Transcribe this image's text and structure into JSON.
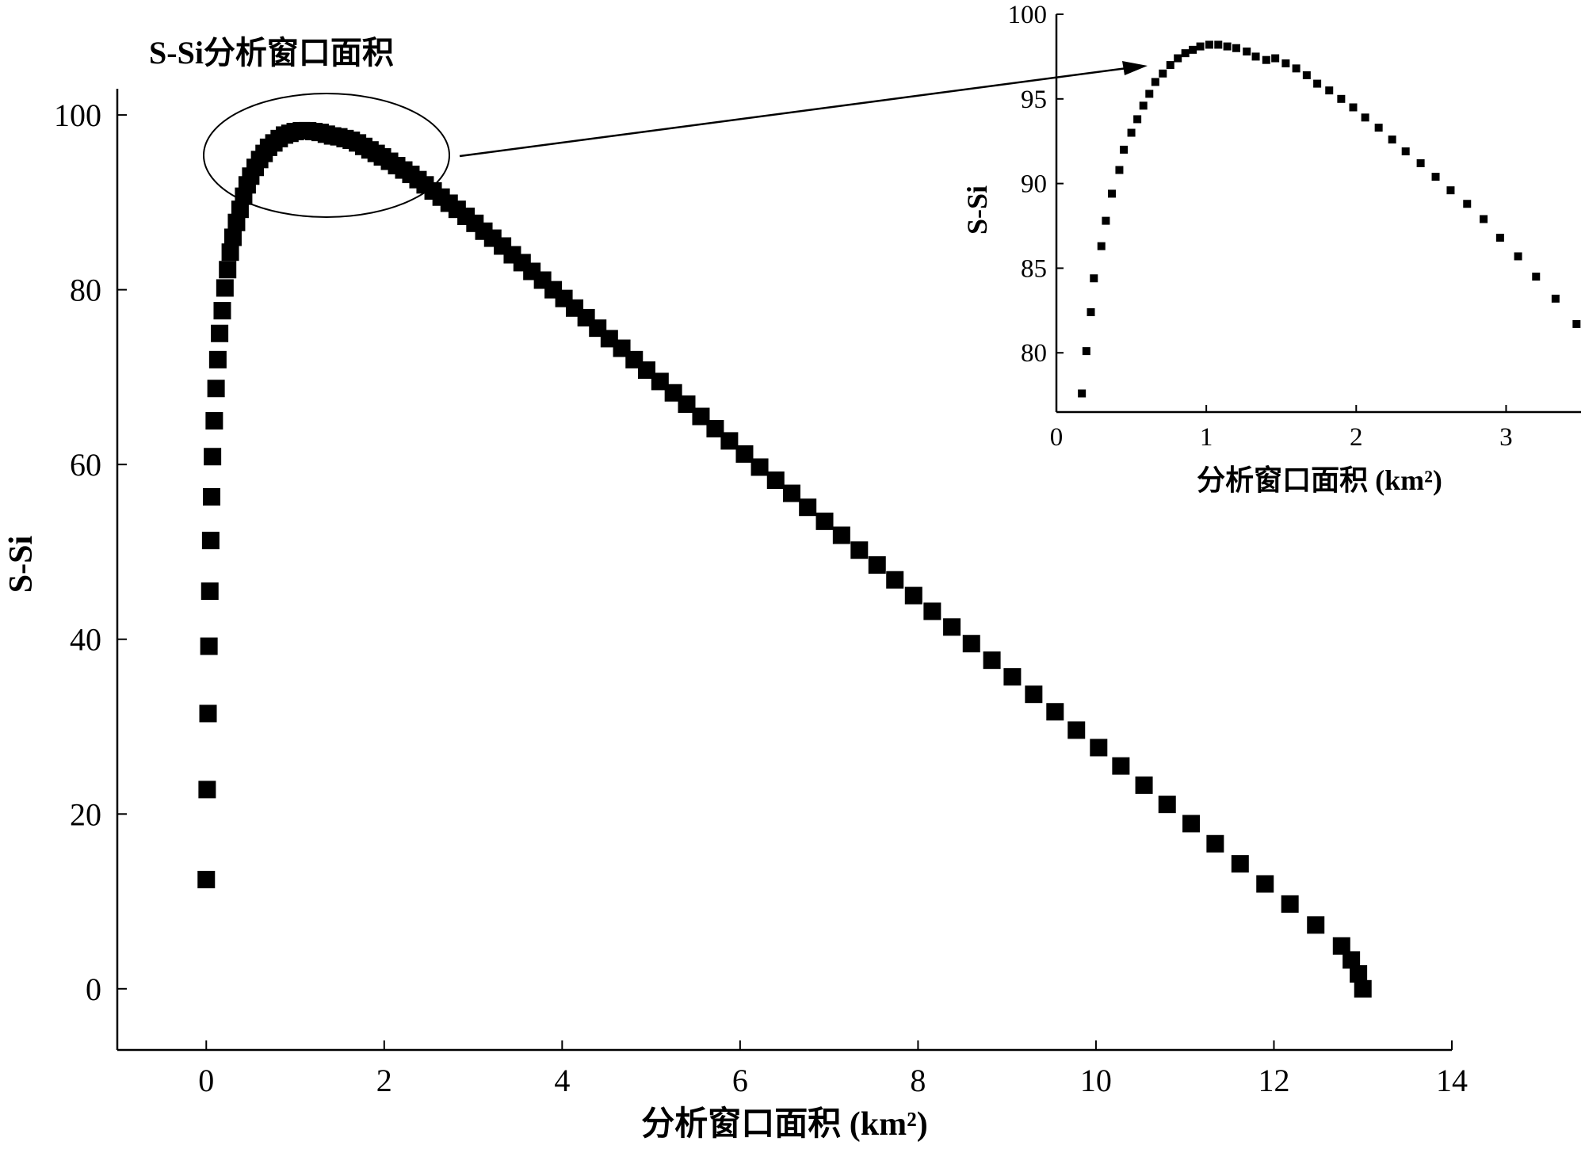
{
  "chart_data": [
    {
      "type": "scatter",
      "title": "S-Si分析窗口面积",
      "xlabel": "分析窗口面积 (km²)",
      "ylabel": "S-Si",
      "xlim": [
        -1,
        14
      ],
      "ylim": [
        -7,
        103
      ],
      "xticks": [
        0,
        2,
        4,
        6,
        8,
        10,
        12,
        14
      ],
      "yticks": [
        0,
        20,
        40,
        60,
        80,
        100
      ],
      "xtick_labels": [
        "0",
        "2",
        "4",
        "6",
        "8",
        "10",
        "12",
        "14"
      ],
      "ytick_labels": [
        "0",
        "20",
        "40",
        "60",
        "80",
        "100"
      ],
      "grid": false,
      "marker": "square",
      "marker_color": "#000000",
      "annotation": "ellipse around the peak region with an arrow pointing to the inset",
      "points": [
        [
          0.0,
          12.5
        ],
        [
          0.01,
          22.8
        ],
        [
          0.02,
          31.5
        ],
        [
          0.03,
          39.2
        ],
        [
          0.04,
          45.5
        ],
        [
          0.05,
          51.3
        ],
        [
          0.06,
          56.3
        ],
        [
          0.07,
          60.9
        ],
        [
          0.09,
          65.0
        ],
        [
          0.11,
          68.7
        ],
        [
          0.13,
          72.0
        ],
        [
          0.15,
          75.0
        ],
        [
          0.18,
          77.6
        ],
        [
          0.21,
          80.2
        ],
        [
          0.24,
          82.3
        ],
        [
          0.27,
          84.3
        ],
        [
          0.3,
          86.0
        ],
        [
          0.34,
          87.7
        ],
        [
          0.38,
          89.2
        ],
        [
          0.42,
          90.7
        ],
        [
          0.46,
          92.0
        ],
        [
          0.5,
          93.0
        ],
        [
          0.55,
          94.0
        ],
        [
          0.6,
          94.9
        ],
        [
          0.65,
          95.6
        ],
        [
          0.7,
          96.3
        ],
        [
          0.76,
          96.8
        ],
        [
          0.82,
          97.3
        ],
        [
          0.88,
          97.7
        ],
        [
          0.94,
          97.9
        ],
        [
          1.0,
          98.1
        ],
        [
          1.07,
          98.2
        ],
        [
          1.14,
          98.2
        ],
        [
          1.21,
          98.1
        ],
        [
          1.28,
          98.0
        ],
        [
          1.35,
          97.8
        ],
        [
          1.42,
          97.6
        ],
        [
          1.49,
          97.5
        ],
        [
          1.56,
          97.3
        ],
        [
          1.63,
          97.1
        ],
        [
          1.7,
          96.8
        ],
        [
          1.77,
          96.4
        ],
        [
          1.84,
          96.0
        ],
        [
          1.91,
          95.6
        ],
        [
          1.98,
          95.2
        ],
        [
          2.06,
          94.7
        ],
        [
          2.14,
          94.2
        ],
        [
          2.22,
          93.7
        ],
        [
          2.3,
          93.2
        ],
        [
          2.38,
          92.6
        ],
        [
          2.46,
          92.0
        ],
        [
          2.55,
          91.3
        ],
        [
          2.64,
          90.6
        ],
        [
          2.73,
          89.9
        ],
        [
          2.82,
          89.2
        ],
        [
          2.92,
          88.4
        ],
        [
          3.02,
          87.6
        ],
        [
          3.12,
          86.7
        ],
        [
          3.22,
          85.9
        ],
        [
          3.33,
          85.0
        ],
        [
          3.44,
          84.0
        ],
        [
          3.55,
          83.1
        ],
        [
          3.66,
          82.1
        ],
        [
          3.78,
          81.1
        ],
        [
          3.9,
          80.0
        ],
        [
          4.02,
          79.0
        ],
        [
          4.14,
          77.9
        ],
        [
          4.27,
          76.8
        ],
        [
          4.4,
          75.6
        ],
        [
          4.53,
          74.4
        ],
        [
          4.67,
          73.3
        ],
        [
          4.81,
          72.0
        ],
        [
          4.95,
          70.8
        ],
        [
          5.1,
          69.5
        ],
        [
          5.25,
          68.2
        ],
        [
          5.4,
          66.9
        ],
        [
          5.56,
          65.5
        ],
        [
          5.72,
          64.1
        ],
        [
          5.88,
          62.7
        ],
        [
          6.05,
          61.2
        ],
        [
          6.22,
          59.7
        ],
        [
          6.4,
          58.2
        ],
        [
          6.58,
          56.7
        ],
        [
          6.76,
          55.1
        ],
        [
          6.95,
          53.5
        ],
        [
          7.14,
          51.9
        ],
        [
          7.34,
          50.2
        ],
        [
          7.54,
          48.5
        ],
        [
          7.74,
          46.8
        ],
        [
          7.95,
          45.0
        ],
        [
          8.16,
          43.2
        ],
        [
          8.38,
          41.4
        ],
        [
          8.6,
          39.5
        ],
        [
          8.83,
          37.6
        ],
        [
          9.06,
          35.7
        ],
        [
          9.3,
          33.7
        ],
        [
          9.54,
          31.7
        ],
        [
          9.78,
          29.6
        ],
        [
          10.03,
          27.6
        ],
        [
          10.28,
          25.5
        ],
        [
          10.54,
          23.3
        ],
        [
          10.8,
          21.1
        ],
        [
          11.07,
          18.9
        ],
        [
          11.34,
          16.6
        ],
        [
          11.62,
          14.3
        ],
        [
          11.9,
          12.0
        ],
        [
          12.18,
          9.7
        ],
        [
          12.47,
          7.3
        ],
        [
          12.76,
          4.9
        ],
        [
          12.87,
          3.3
        ],
        [
          12.95,
          1.7
        ],
        [
          13.0,
          0.0
        ]
      ]
    },
    {
      "type": "scatter",
      "title": "",
      "xlabel": "分析窗口面积 (km²)",
      "ylabel": "S-Si",
      "xlim": [
        0,
        3.5
      ],
      "ylim": [
        76.5,
        100
      ],
      "xticks": [
        0,
        1,
        2,
        3
      ],
      "yticks": [
        80,
        85,
        90,
        95,
        100
      ],
      "xtick_labels": [
        "0",
        "1",
        "2",
        "3"
      ],
      "ytick_labels": [
        "80",
        "85",
        "90",
        "95",
        "100"
      ],
      "grid": false,
      "marker": "square",
      "marker_color": "#000000",
      "points": [
        [
          0.17,
          77.6
        ],
        [
          0.2,
          80.1
        ],
        [
          0.23,
          82.4
        ],
        [
          0.25,
          84.4
        ],
        [
          0.3,
          86.3
        ],
        [
          0.33,
          87.8
        ],
        [
          0.37,
          89.4
        ],
        [
          0.42,
          90.8
        ],
        [
          0.45,
          92.0
        ],
        [
          0.5,
          93.0
        ],
        [
          0.54,
          93.8
        ],
        [
          0.58,
          94.6
        ],
        [
          0.62,
          95.3
        ],
        [
          0.66,
          96.0
        ],
        [
          0.71,
          96.5
        ],
        [
          0.76,
          97.0
        ],
        [
          0.81,
          97.4
        ],
        [
          0.86,
          97.7
        ],
        [
          0.91,
          97.9
        ],
        [
          0.96,
          98.1
        ],
        [
          1.02,
          98.2
        ],
        [
          1.08,
          98.2
        ],
        [
          1.14,
          98.1
        ],
        [
          1.2,
          98.0
        ],
        [
          1.27,
          97.8
        ],
        [
          1.33,
          97.5
        ],
        [
          1.4,
          97.3
        ],
        [
          1.46,
          97.4
        ],
        [
          1.53,
          97.1
        ],
        [
          1.6,
          96.8
        ],
        [
          1.67,
          96.4
        ],
        [
          1.74,
          95.9
        ],
        [
          1.82,
          95.5
        ],
        [
          1.9,
          95.0
        ],
        [
          1.98,
          94.5
        ],
        [
          2.06,
          93.9
        ],
        [
          2.15,
          93.3
        ],
        [
          2.24,
          92.6
        ],
        [
          2.33,
          91.9
        ],
        [
          2.43,
          91.2
        ],
        [
          2.53,
          90.4
        ],
        [
          2.63,
          89.6
        ],
        [
          2.74,
          88.8
        ],
        [
          2.85,
          87.9
        ],
        [
          2.96,
          86.8
        ],
        [
          3.08,
          85.7
        ],
        [
          3.2,
          84.5
        ],
        [
          3.33,
          83.2
        ],
        [
          3.47,
          81.7
        ]
      ]
    }
  ]
}
